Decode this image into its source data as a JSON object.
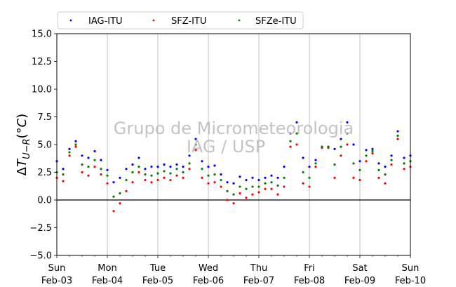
{
  "chart_data": {
    "type": "scatter",
    "title": "",
    "ylabel": "ΔT_U−R (°C)",
    "ylim": [
      -5.0,
      15.0
    ],
    "yticks": [
      -5.0,
      -2.5,
      0.0,
      2.5,
      5.0,
      7.5,
      10.0,
      12.5,
      15.0
    ],
    "ytick_labels": [
      "−5.0",
      "−2.5",
      "0.0",
      "2.5",
      "5.0",
      "7.5",
      "10.0",
      "12.5",
      "15.0"
    ],
    "xlim": [
      "2019-02-03 00:00",
      "2019-02-10 00:00"
    ],
    "xtick_labels": [
      {
        "day": "Sun",
        "date": "Feb-03"
      },
      {
        "day": "Mon",
        "date": "Feb-04"
      },
      {
        "day": "Tue",
        "date": "Feb-05"
      },
      {
        "day": "Wed",
        "date": "Feb-06"
      },
      {
        "day": "Thu",
        "date": "Feb-07"
      },
      {
        "day": "Fri",
        "date": "Feb-08"
      },
      {
        "day": "Sat",
        "date": "Feb-09"
      },
      {
        "day": "Sun",
        "date": "Feb-10"
      }
    ],
    "grid": "vertical",
    "zero_line": true,
    "legend_position": "top",
    "watermark": [
      "Grupo de Micrometeorologia",
      "IAG / USP"
    ],
    "series": [
      {
        "name": "IAG-ITU",
        "color": "#0000ff",
        "points": [
          [
            "2019-02-03 00:00",
            3.5
          ],
          [
            "2019-02-03 03:00",
            2.8
          ],
          [
            "2019-02-03 06:00",
            4.6
          ],
          [
            "2019-02-03 09:00",
            5.3
          ],
          [
            "2019-02-03 12:00",
            4.0
          ],
          [
            "2019-02-03 15:00",
            3.8
          ],
          [
            "2019-02-03 18:00",
            4.4
          ],
          [
            "2019-02-03 21:00",
            3.6
          ],
          [
            "2019-02-04 00:00",
            2.7
          ],
          [
            "2019-02-04 03:00",
            1.6
          ],
          [
            "2019-02-04 06:00",
            2.0
          ],
          [
            "2019-02-04 09:00",
            2.8
          ],
          [
            "2019-02-04 12:00",
            3.2
          ],
          [
            "2019-02-04 15:00",
            3.8
          ],
          [
            "2019-02-04 18:00",
            2.8
          ],
          [
            "2019-02-04 21:00",
            3.0
          ],
          [
            "2019-02-05 00:00",
            3.0
          ],
          [
            "2019-02-05 03:00",
            3.2
          ],
          [
            "2019-02-05 06:00",
            3.0
          ],
          [
            "2019-02-05 09:00",
            3.2
          ],
          [
            "2019-02-05 12:00",
            3.0
          ],
          [
            "2019-02-05 15:00",
            4.0
          ],
          [
            "2019-02-05 18:00",
            5.5
          ],
          [
            "2019-02-05 21:00",
            3.5
          ],
          [
            "2019-02-06 00:00",
            3.0
          ],
          [
            "2019-02-06 03:00",
            3.1
          ],
          [
            "2019-02-06 06:00",
            2.3
          ],
          [
            "2019-02-06 09:00",
            1.6
          ],
          [
            "2019-02-06 12:00",
            1.5
          ],
          [
            "2019-02-06 15:00",
            2.1
          ],
          [
            "2019-02-06 18:00",
            1.8
          ],
          [
            "2019-02-06 21:00",
            2.0
          ],
          [
            "2019-02-07 00:00",
            1.8
          ],
          [
            "2019-02-07 03:00",
            2.0
          ],
          [
            "2019-02-07 06:00",
            2.2
          ],
          [
            "2019-02-07 09:00",
            2.0
          ],
          [
            "2019-02-07 12:00",
            3.0
          ],
          [
            "2019-02-07 15:00",
            6.0
          ],
          [
            "2019-02-07 18:00",
            7.0
          ],
          [
            "2019-02-07 21:00",
            3.8
          ],
          [
            "2019-02-08 00:00",
            3.0
          ],
          [
            "2019-02-08 03:00",
            3.6
          ],
          [
            "2019-02-08 06:00",
            4.8
          ],
          [
            "2019-02-08 09:00",
            4.8
          ],
          [
            "2019-02-08 12:00",
            4.6
          ],
          [
            "2019-02-08 15:00",
            5.5
          ],
          [
            "2019-02-08 18:00",
            7.0
          ],
          [
            "2019-02-08 21:00",
            5.0
          ],
          [
            "2019-02-09 00:00",
            3.5
          ],
          [
            "2019-02-09 03:00",
            4.5
          ],
          [
            "2019-02-09 06:00",
            4.6
          ],
          [
            "2019-02-09 09:00",
            3.3
          ],
          [
            "2019-02-09 12:00",
            3.0
          ],
          [
            "2019-02-09 15:00",
            4.0
          ],
          [
            "2019-02-09 18:00",
            6.2
          ],
          [
            "2019-02-09 21:00",
            3.8
          ],
          [
            "2019-02-10 00:00",
            4.0
          ]
        ]
      },
      {
        "name": "SFZ-ITU",
        "color": "#ff0000",
        "points": [
          [
            "2019-02-03 00:00",
            2.0
          ],
          [
            "2019-02-03 03:00",
            1.7
          ],
          [
            "2019-02-03 06:00",
            4.0
          ],
          [
            "2019-02-03 09:00",
            4.8
          ],
          [
            "2019-02-03 12:00",
            2.5
          ],
          [
            "2019-02-03 15:00",
            2.2
          ],
          [
            "2019-02-03 18:00",
            3.0
          ],
          [
            "2019-02-03 21:00",
            2.3
          ],
          [
            "2019-02-04 00:00",
            1.5
          ],
          [
            "2019-02-04 03:00",
            -1.0
          ],
          [
            "2019-02-04 06:00",
            -0.3
          ],
          [
            "2019-02-04 09:00",
            0.8
          ],
          [
            "2019-02-04 12:00",
            1.6
          ],
          [
            "2019-02-04 15:00",
            2.5
          ],
          [
            "2019-02-04 18:00",
            1.8
          ],
          [
            "2019-02-04 21:00",
            1.6
          ],
          [
            "2019-02-05 00:00",
            1.8
          ],
          [
            "2019-02-05 03:00",
            2.0
          ],
          [
            "2019-02-05 06:00",
            1.8
          ],
          [
            "2019-02-05 09:00",
            2.2
          ],
          [
            "2019-02-05 12:00",
            2.0
          ],
          [
            "2019-02-05 15:00",
            2.8
          ],
          [
            "2019-02-05 18:00",
            4.5
          ],
          [
            "2019-02-05 21:00",
            2.0
          ],
          [
            "2019-02-06 00:00",
            1.5
          ],
          [
            "2019-02-06 03:00",
            1.6
          ],
          [
            "2019-02-06 06:00",
            1.2
          ],
          [
            "2019-02-06 09:00",
            0.0
          ],
          [
            "2019-02-06 12:00",
            -0.3
          ],
          [
            "2019-02-06 15:00",
            0.6
          ],
          [
            "2019-02-06 18:00",
            0.2
          ],
          [
            "2019-02-06 21:00",
            0.5
          ],
          [
            "2019-02-07 00:00",
            0.7
          ],
          [
            "2019-02-07 03:00",
            1.0
          ],
          [
            "2019-02-07 06:00",
            1.0
          ],
          [
            "2019-02-07 09:00",
            0.5
          ],
          [
            "2019-02-07 12:00",
            1.2
          ],
          [
            "2019-02-07 15:00",
            4.8
          ],
          [
            "2019-02-07 18:00",
            5.0
          ],
          [
            "2019-02-07 21:00",
            1.5
          ],
          [
            "2019-02-08 00:00",
            1.2
          ],
          [
            "2019-02-08 03:00",
            3.0
          ],
          [
            "2019-02-08 06:00",
            4.7
          ],
          [
            "2019-02-08 09:00",
            4.7
          ],
          [
            "2019-02-08 12:00",
            2.0
          ],
          [
            "2019-02-08 15:00",
            4.0
          ],
          [
            "2019-02-08 18:00",
            5.0
          ],
          [
            "2019-02-08 21:00",
            2.0
          ],
          [
            "2019-02-09 00:00",
            1.8
          ],
          [
            "2019-02-09 03:00",
            3.5
          ],
          [
            "2019-02-09 06:00",
            4.2
          ],
          [
            "2019-02-09 09:00",
            2.0
          ],
          [
            "2019-02-09 12:00",
            1.5
          ],
          [
            "2019-02-09 15:00",
            3.2
          ],
          [
            "2019-02-09 18:00",
            5.5
          ],
          [
            "2019-02-09 21:00",
            2.8
          ],
          [
            "2019-02-10 00:00",
            3.0
          ]
        ]
      },
      {
        "name": "SFZe-ITU",
        "color": "#008000",
        "points": [
          [
            "2019-02-03 00:00",
            2.5
          ],
          [
            "2019-02-03 03:00",
            2.3
          ],
          [
            "2019-02-03 06:00",
            4.3
          ],
          [
            "2019-02-03 09:00",
            5.0
          ],
          [
            "2019-02-03 12:00",
            3.2
          ],
          [
            "2019-02-03 15:00",
            3.0
          ],
          [
            "2019-02-03 18:00",
            3.6
          ],
          [
            "2019-02-03 21:00",
            2.8
          ],
          [
            "2019-02-04 00:00",
            2.2
          ],
          [
            "2019-02-04 03:00",
            0.3
          ],
          [
            "2019-02-04 06:00",
            0.6
          ],
          [
            "2019-02-04 09:00",
            1.8
          ],
          [
            "2019-02-04 12:00",
            2.5
          ],
          [
            "2019-02-04 15:00",
            3.0
          ],
          [
            "2019-02-04 18:00",
            2.3
          ],
          [
            "2019-02-04 21:00",
            2.2
          ],
          [
            "2019-02-05 00:00",
            2.4
          ],
          [
            "2019-02-05 03:00",
            2.6
          ],
          [
            "2019-02-05 06:00",
            2.4
          ],
          [
            "2019-02-05 09:00",
            2.8
          ],
          [
            "2019-02-05 12:00",
            2.5
          ],
          [
            "2019-02-05 15:00",
            3.3
          ],
          [
            "2019-02-05 18:00",
            5.0
          ],
          [
            "2019-02-05 21:00",
            2.8
          ],
          [
            "2019-02-06 00:00",
            2.2
          ],
          [
            "2019-02-06 03:00",
            2.3
          ],
          [
            "2019-02-06 06:00",
            1.8
          ],
          [
            "2019-02-06 09:00",
            0.8
          ],
          [
            "2019-02-06 12:00",
            0.5
          ],
          [
            "2019-02-06 15:00",
            1.2
          ],
          [
            "2019-02-06 18:00",
            1.0
          ],
          [
            "2019-02-06 21:00",
            1.2
          ],
          [
            "2019-02-07 00:00",
            1.2
          ],
          [
            "2019-02-07 03:00",
            1.5
          ],
          [
            "2019-02-07 06:00",
            1.6
          ],
          [
            "2019-02-07 09:00",
            1.3
          ],
          [
            "2019-02-07 12:00",
            2.0
          ],
          [
            "2019-02-07 15:00",
            5.3
          ],
          [
            "2019-02-07 18:00",
            6.0
          ],
          [
            "2019-02-07 21:00",
            2.5
          ],
          [
            "2019-02-08 00:00",
            2.0
          ],
          [
            "2019-02-08 03:00",
            3.3
          ],
          [
            "2019-02-08 06:00",
            4.8
          ],
          [
            "2019-02-08 09:00",
            4.8
          ],
          [
            "2019-02-08 12:00",
            3.2
          ],
          [
            "2019-02-08 15:00",
            4.8
          ],
          [
            "2019-02-08 18:00",
            6.0
          ],
          [
            "2019-02-08 21:00",
            3.3
          ],
          [
            "2019-02-09 00:00",
            2.7
          ],
          [
            "2019-02-09 03:00",
            4.0
          ],
          [
            "2019-02-09 06:00",
            4.4
          ],
          [
            "2019-02-09 09:00",
            2.7
          ],
          [
            "2019-02-09 12:00",
            2.3
          ],
          [
            "2019-02-09 15:00",
            3.6
          ],
          [
            "2019-02-09 18:00",
            5.8
          ],
          [
            "2019-02-09 21:00",
            3.3
          ],
          [
            "2019-02-10 00:00",
            3.5
          ]
        ]
      }
    ]
  }
}
